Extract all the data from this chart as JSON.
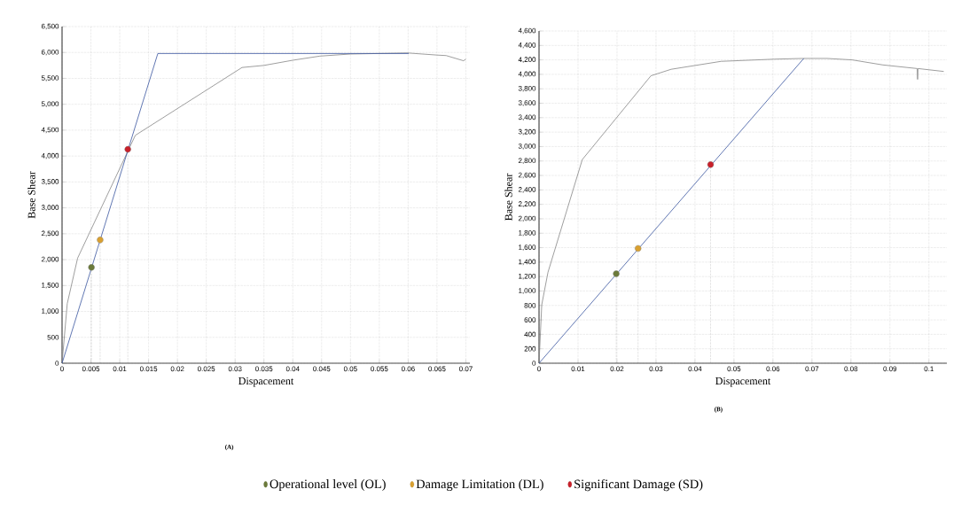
{
  "chart_data": [
    {
      "type": "line",
      "xlabel": "Dispacement",
      "ylabel": "Base Shear",
      "annotations": [
        "(A)"
      ],
      "grid": true,
      "legend": "bottom",
      "xlim": [
        0,
        0.0707
      ],
      "ylim": [
        0,
        6500
      ],
      "xticks": [
        0,
        0.005,
        0.01,
        0.015,
        0.02,
        0.025,
        0.03,
        0.035,
        0.04,
        0.045,
        0.05,
        0.055,
        0.06,
        0.065,
        0.07
      ],
      "yticks": [
        0,
        500,
        {
          "value": 1000,
          "label": "1,000"
        },
        {
          "value": 1500,
          "label": "1,500"
        },
        {
          "value": 2000,
          "label": "2,000"
        },
        {
          "value": 2500,
          "label": "2,500"
        },
        {
          "value": 3000,
          "label": "3,000"
        },
        {
          "value": 3500,
          "label": "3,500"
        },
        {
          "value": 4000,
          "label": "4,000"
        },
        {
          "value": 4500,
          "label": "4,500"
        },
        {
          "value": 5000,
          "label": "5,000"
        },
        {
          "value": 5500,
          "label": "5,500"
        },
        {
          "value": 6000,
          "label": "6,000"
        },
        {
          "value": 6500,
          "label": "6,500"
        }
      ],
      "series": [
        {
          "type": "line",
          "color": "#858585",
          "x": [
            0,
            0.0009,
            0.0027,
            0.0127,
            0.0312,
            0.035,
            0.04,
            0.0447,
            0.05,
            0.0599,
            0.065,
            0.0666,
            0.0696,
            0.07
          ],
          "values": [
            0,
            1150,
            2030,
            4400,
            5710,
            5750,
            5850,
            5930,
            5970,
            5990,
            5950,
            5940,
            5840,
            5870
          ]
        },
        {
          "type": "line",
          "color": "#3a56a0",
          "x": [
            0,
            0.0166,
            0.0601
          ],
          "values": [
            0,
            5980,
            5980
          ]
        },
        {
          "type": "lollipop",
          "name": "Operational level (OL)",
          "color": "#6b7a3a",
          "marker": "circle",
          "x": [
            0.0051
          ],
          "values": [
            1850
          ]
        },
        {
          "type": "lollipop",
          "name": "Damage Limitation (DL)",
          "color": "#d9a030",
          "marker": "circle",
          "x": [
            0.0066
          ],
          "values": [
            2380
          ]
        },
        {
          "type": "lollipop",
          "name": "Significant Damage (SD)",
          "color": "#c8202a",
          "marker": "circle",
          "x": [
            0.0114
          ],
          "values": [
            4130
          ]
        }
      ]
    },
    {
      "type": "line",
      "xlabel": "Dispacement",
      "ylabel": "Base Shear",
      "annotations": [
        "(B)"
      ],
      "grid": true,
      "xlim": [
        0,
        0.1046
      ],
      "ylim": [
        0,
        4600
      ],
      "xticks": [
        0,
        0.01,
        0.02,
        0.03,
        0.04,
        0.05,
        0.06,
        0.07,
        0.08,
        0.09,
        0.1
      ],
      "yticks": [
        0,
        200,
        400,
        600,
        800,
        {
          "value": 1000,
          "label": "1,000"
        },
        {
          "value": 1200,
          "label": "1,200"
        },
        {
          "value": 1400,
          "label": "1,400"
        },
        {
          "value": 1600,
          "label": "1,600"
        },
        {
          "value": 1800,
          "label": "1,800"
        },
        {
          "value": 2000,
          "label": "2,000"
        },
        {
          "value": 2200,
          "label": "2,200"
        },
        {
          "value": 2400,
          "label": "2,400"
        },
        {
          "value": 2600,
          "label": "2,600"
        },
        {
          "value": 2800,
          "label": "2,800"
        },
        {
          "value": 3000,
          "label": "3,000"
        },
        {
          "value": 3200,
          "label": "3,200"
        },
        {
          "value": 3400,
          "label": "3,400"
        },
        {
          "value": 3600,
          "label": "3,600"
        },
        {
          "value": 3800,
          "label": "3,800"
        },
        {
          "value": 4000,
          "label": "4,000"
        },
        {
          "value": 4200,
          "label": "4,200"
        },
        {
          "value": 4400,
          "label": "4,400"
        },
        {
          "value": 4600,
          "label": "4,600"
        }
      ],
      "series": [
        {
          "type": "line",
          "color": "#858585",
          "x": [
            0,
            0.0007,
            0.0023,
            0.0111,
            0.0287,
            0.0339,
            0.0467,
            0.0603,
            0.0675,
            0.0739,
            0.0803,
            0.0882,
            0.097,
            0.0971,
            0.0972,
            0.1038
          ],
          "values": [
            0,
            810,
            1260,
            2820,
            3980,
            4070,
            4180,
            4210,
            4220,
            4220,
            4200,
            4130,
            4080,
            3930,
            4080,
            4040
          ]
        },
        {
          "type": "line",
          "color": "#3a56a0",
          "x": [
            0,
            0.0679
          ],
          "values": [
            0,
            4220
          ]
        },
        {
          "type": "lollipop",
          "color": "#6b7a3a",
          "marker": "circle",
          "x": [
            0.0198
          ],
          "values": [
            1240
          ]
        },
        {
          "type": "lollipop",
          "color": "#d9a030",
          "marker": "circle",
          "x": [
            0.0254
          ],
          "values": [
            1590
          ]
        },
        {
          "type": "lollipop",
          "color": "#c8202a",
          "marker": "circle",
          "x": [
            0.044
          ],
          "values": [
            2750
          ]
        }
      ]
    }
  ]
}
